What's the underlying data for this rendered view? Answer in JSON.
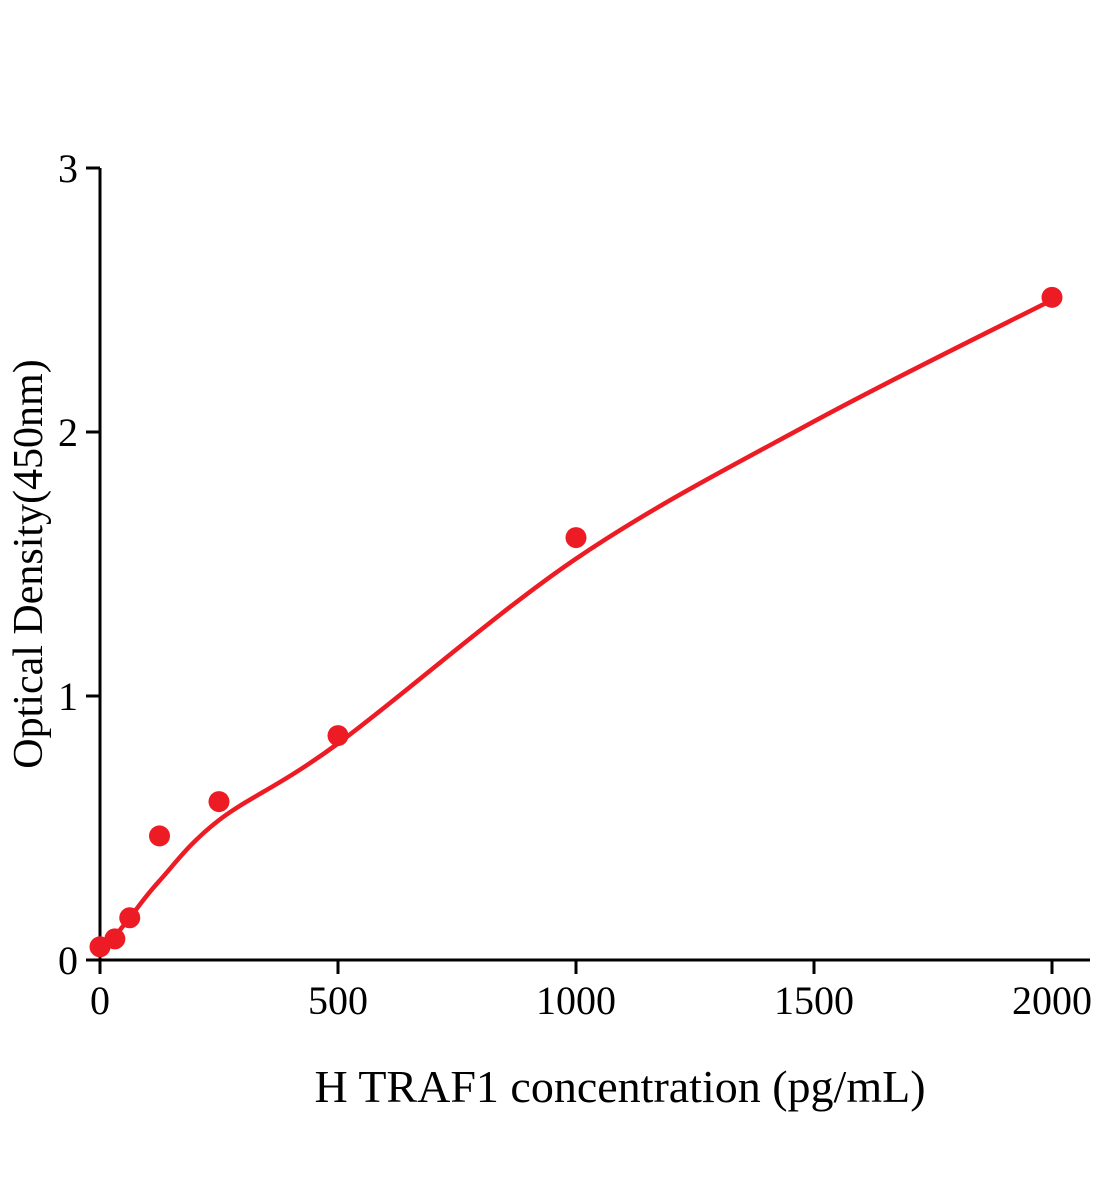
{
  "page": {
    "background": "#ffffff"
  },
  "chart_data": {
    "type": "scatter",
    "title": "",
    "xlabel": "H TRAF1 concentration (pg/mL)",
    "ylabel": "Optical Density(450nm)",
    "xlim": [
      0,
      2000
    ],
    "ylim": [
      0,
      3
    ],
    "x_ticks": [
      0,
      500,
      1000,
      1500,
      2000
    ],
    "y_ticks": [
      0,
      1,
      2,
      3
    ],
    "grid": false,
    "legend": null,
    "point_color": "#ed1c24",
    "line_color": "#ed1c24",
    "axis_color": "#000000",
    "points": [
      {
        "x": 0,
        "y": 0.05
      },
      {
        "x": 31.25,
        "y": 0.08
      },
      {
        "x": 62.5,
        "y": 0.16
      },
      {
        "x": 125,
        "y": 0.47
      },
      {
        "x": 250,
        "y": 0.6
      },
      {
        "x": 500,
        "y": 0.85
      },
      {
        "x": 1000,
        "y": 1.6
      },
      {
        "x": 2000,
        "y": 2.51
      }
    ],
    "fit_curve": [
      {
        "x": 0,
        "y": 0.02
      },
      {
        "x": 31.25,
        "y": 0.09
      },
      {
        "x": 62.5,
        "y": 0.16
      },
      {
        "x": 125,
        "y": 0.3
      },
      {
        "x": 250,
        "y": 0.53
      },
      {
        "x": 500,
        "y": 0.82
      },
      {
        "x": 1000,
        "y": 1.52
      },
      {
        "x": 1500,
        "y": 2.04
      },
      {
        "x": 2000,
        "y": 2.5
      }
    ]
  }
}
